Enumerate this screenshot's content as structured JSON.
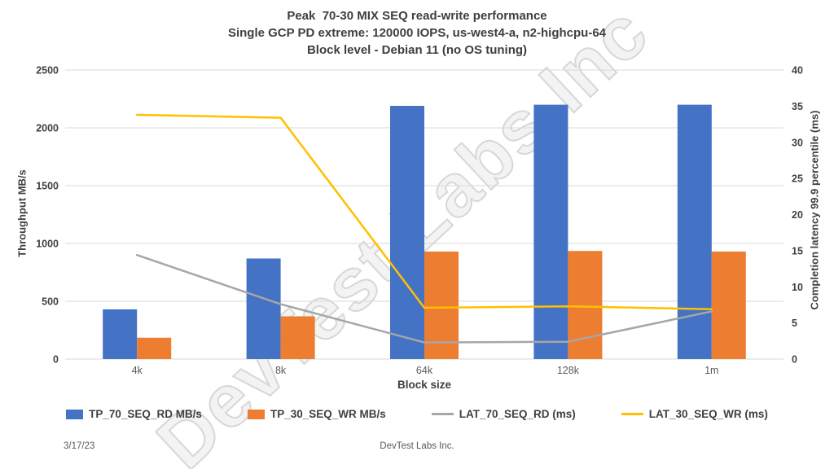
{
  "header": {
    "title_lines": [
      "Peak  70-30 MIX SEQ read-write performance",
      "Single GCP PD extreme: 120000 IOPS, us-west4-a, n2-highcpu-64",
      "Block level - Debian 11 (no OS tuning)"
    ]
  },
  "watermark": {
    "text": "DevTest Labs Inc"
  },
  "footer": {
    "date": "3/17/23",
    "company": "DevTest Labs Inc."
  },
  "colors": {
    "read_bar": "#4472C4",
    "write_bar": "#ED7D31",
    "read_latency_line": "#A6A6A6",
    "write_latency_line": "#FFC000",
    "gridline": "#D9D9D9",
    "text": "#404040"
  },
  "chart_data": {
    "type": "bar",
    "subtype": "combo bar+line, dual axis",
    "title": "Peak  70-30 MIX SEQ read-write performance",
    "categories": [
      "4k",
      "8k",
      "64k",
      "128k",
      "1m"
    ],
    "series": [
      {
        "name": "TP_70_SEQ_RD MB/s",
        "type": "bar",
        "axis": "left",
        "color": "#4472C4",
        "values": [
          430,
          870,
          2190,
          2200,
          2200
        ]
      },
      {
        "name": "TP_30_SEQ_WR MB/s",
        "type": "bar",
        "axis": "left",
        "color": "#ED7D31",
        "values": [
          185,
          370,
          930,
          935,
          930
        ]
      },
      {
        "name": "LAT_70_SEQ_RD (ms)",
        "type": "line",
        "axis": "right",
        "color": "#A6A6A6",
        "values": [
          14.4,
          7.6,
          2.3,
          2.4,
          6.6
        ]
      },
      {
        "name": "LAT_30_SEQ_WR (ms)",
        "type": "line",
        "axis": "right",
        "color": "#FFC000",
        "values": [
          33.8,
          33.4,
          7.1,
          7.3,
          6.9
        ]
      }
    ],
    "xlabel": "Block size",
    "ylabel_left": "Throughput MB/s",
    "ylabel_right": "Completion latency 99.9 percentile (ms)",
    "left_axis": {
      "min": 0,
      "max": 2500,
      "step": 500,
      "ticks": [
        "0",
        "500",
        "1000",
        "1500",
        "2000",
        "2500"
      ]
    },
    "right_axis": {
      "min": 0,
      "max": 40,
      "step": 5,
      "ticks": [
        "0",
        "5",
        "10",
        "15",
        "20",
        "25",
        "30",
        "35",
        "40"
      ]
    },
    "grid": true,
    "legend_position": "bottom"
  }
}
